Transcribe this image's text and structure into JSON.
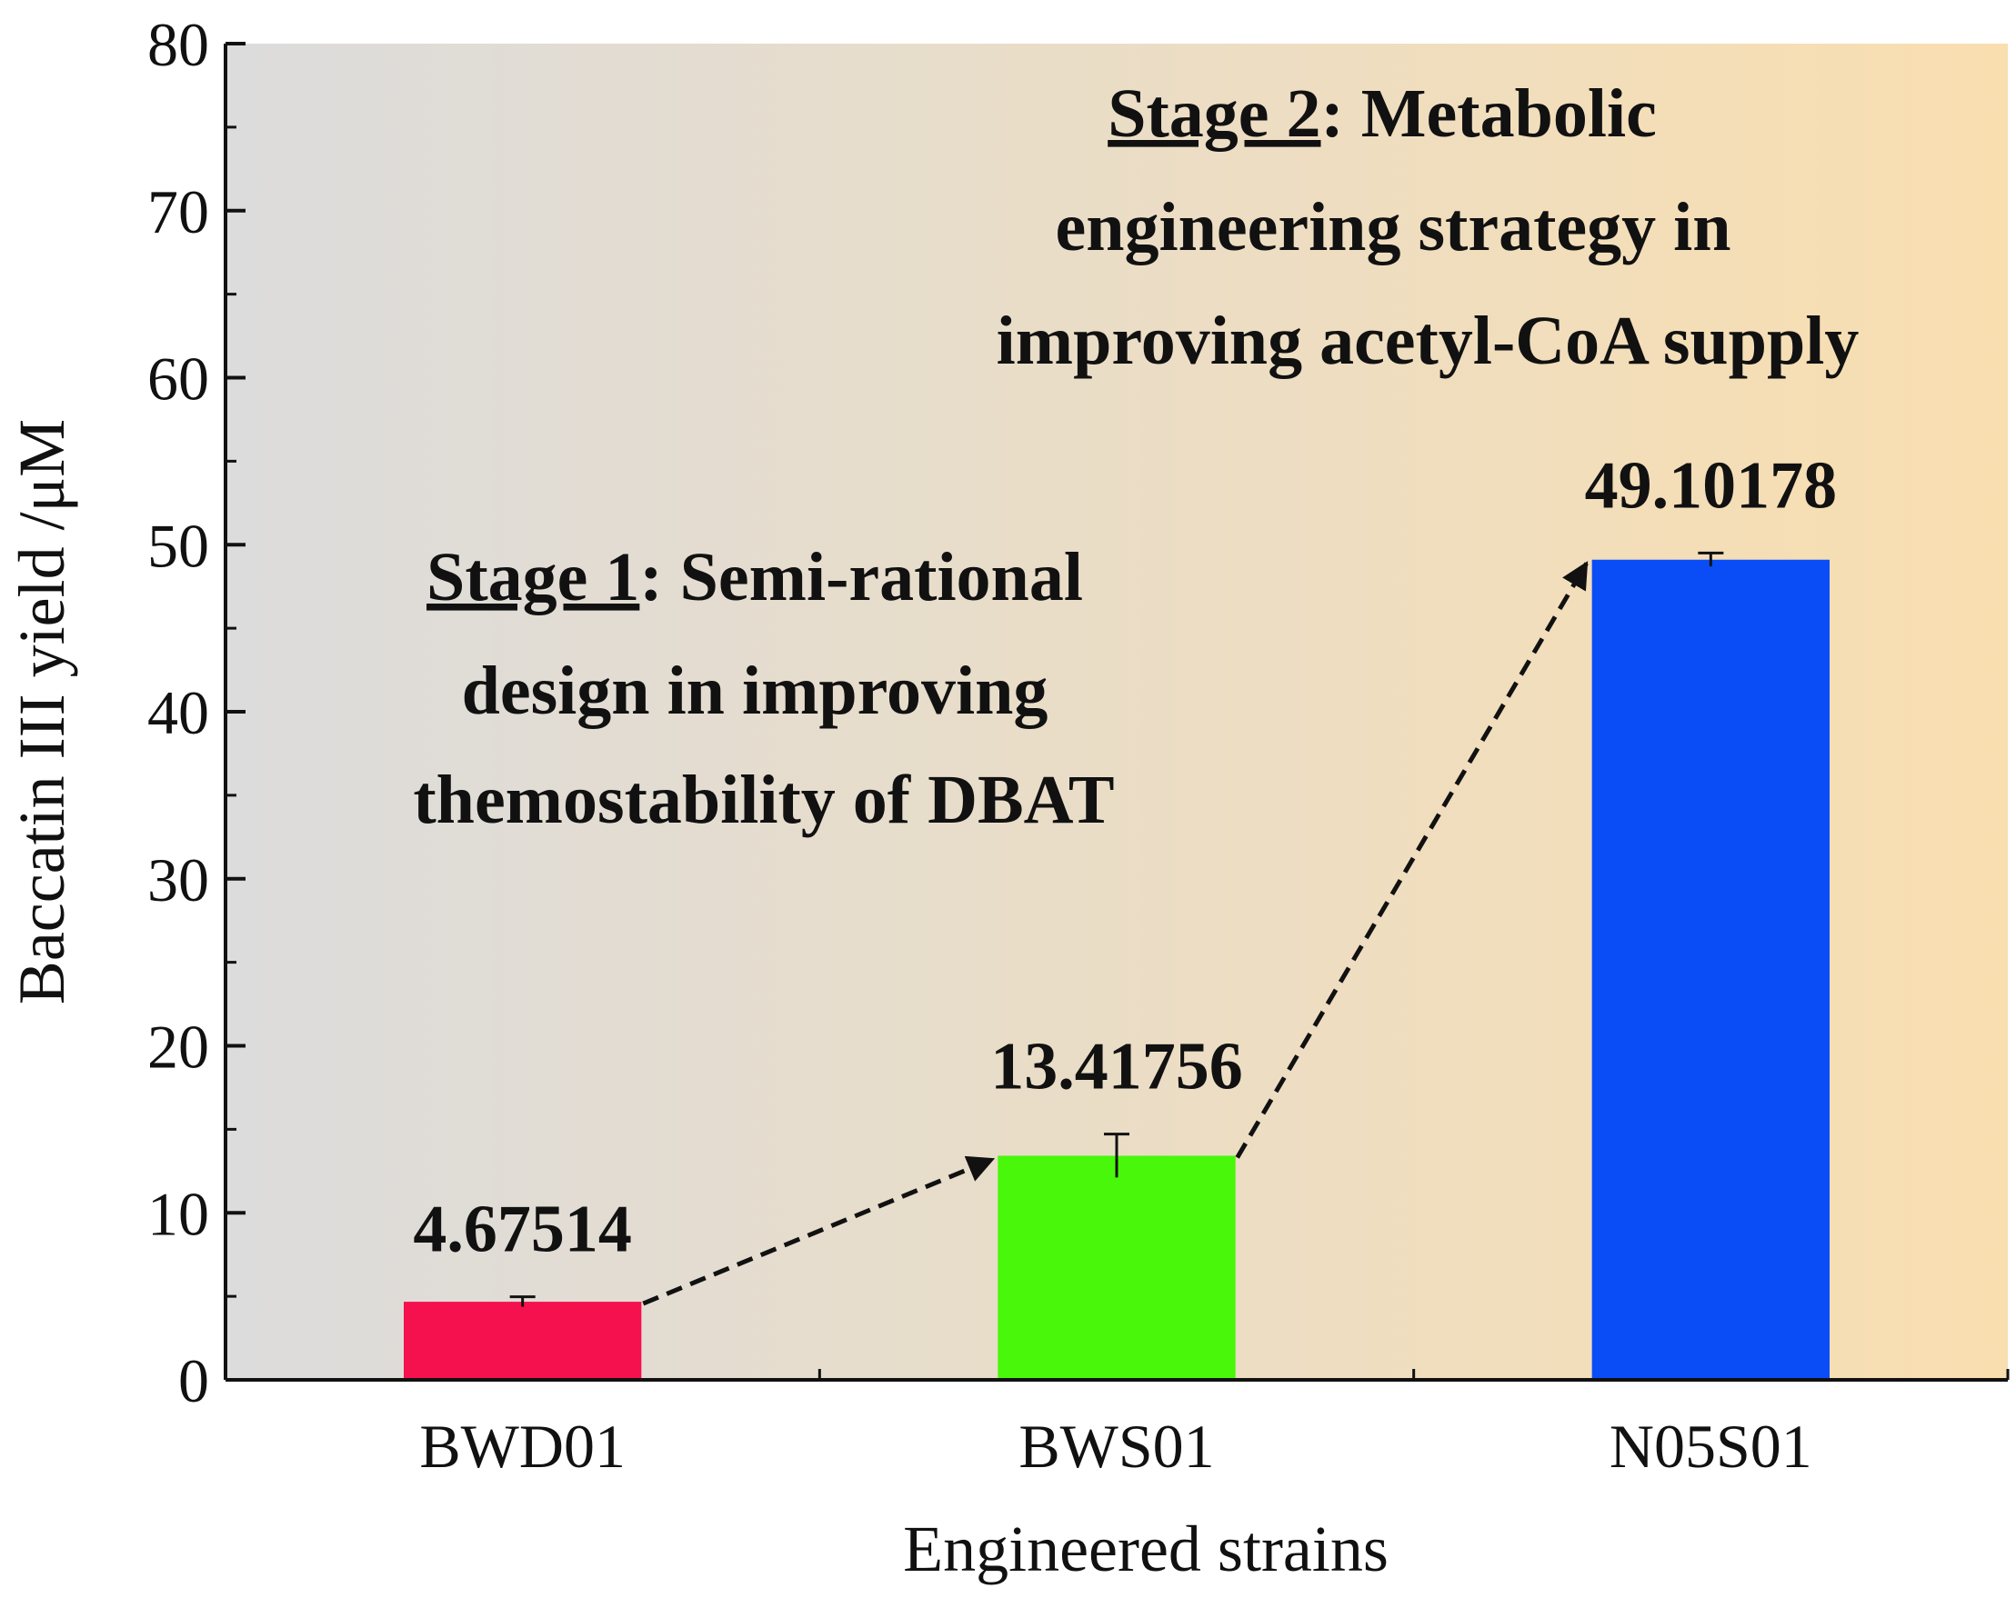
{
  "chart_data": {
    "type": "bar",
    "title": "",
    "xlabel": "Engineered strains",
    "ylabel": "Baccatin III yield /μM",
    "ylim": [
      0,
      80
    ],
    "yticks": [
      0,
      10,
      20,
      30,
      40,
      50,
      60,
      70,
      80
    ],
    "ytick_labels": [
      "0",
      "10",
      "20",
      "30",
      "40",
      "50",
      "60",
      "70",
      "80"
    ],
    "grid": false,
    "categories": [
      "BWD01",
      "BWS01",
      "N05S01"
    ],
    "values": [
      4.67514,
      13.41756,
      49.10178
    ],
    "errors": [
      0.3,
      1.3,
      0.4
    ],
    "value_labels": [
      "4.67514",
      "13.41756",
      "49.10178"
    ],
    "bar_colors": [
      "#f5104e",
      "#49f70b",
      "#0a4df7"
    ],
    "background_gradient": [
      "#dcdcdc",
      "#f9deb0"
    ],
    "arrows": [
      {
        "from": "BWD01",
        "to": "BWS01"
      },
      {
        "from": "BWS01",
        "to": "N05S01"
      }
    ],
    "annotations": {
      "stage1": {
        "underlined": "Stage 1",
        "rest": ": Semi-rational",
        "lines": [
          "design in improving",
          "themostability of DBAT"
        ]
      },
      "stage2": {
        "underlined": "Stage 2",
        "rest": ": Metabolic",
        "lines": [
          "engineering strategy in",
          "improving acetyl-CoA supply"
        ]
      }
    }
  }
}
